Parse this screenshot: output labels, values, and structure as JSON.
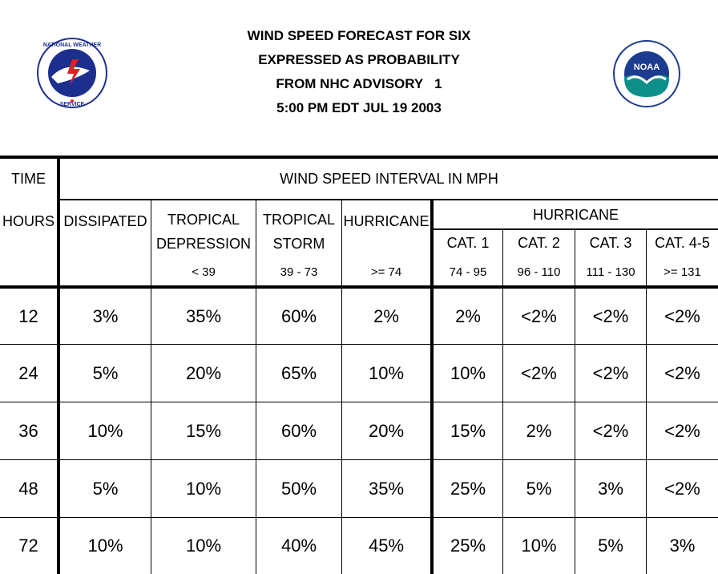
{
  "title": {
    "line1": "WIND SPEED FORECAST FOR SIX",
    "line2": "EXPRESSED AS PROBABILITY",
    "line3": "FROM NHC ADVISORY   1",
    "line4": "5:00 PM EDT JUL 19 2003"
  },
  "logos": {
    "nws": {
      "icon": "national-weather-service-seal-icon",
      "text": "NATIONAL WEATHER SERVICE"
    },
    "noaa": {
      "icon": "noaa-seal-icon",
      "text": "NOAA",
      "color": "#1c3d8f",
      "accent": "#0f8f8a"
    }
  },
  "table": {
    "time_label": "TIME",
    "interval_label": "WIND SPEED INTERVAL IN MPH",
    "hours_label": "HOURS",
    "columns": {
      "dissipated": {
        "label": "DISSIPATED",
        "range": ""
      },
      "td": {
        "label1": "TROPICAL",
        "label2": "DEPRESSION",
        "range": "< 39"
      },
      "ts": {
        "label1": "TROPICAL",
        "label2": "STORM",
        "range": "39 - 73"
      },
      "hu": {
        "label": "HURRICANE",
        "range": ">= 74"
      },
      "hurricane_group": "HURRICANE",
      "cat1": {
        "label": "CAT. 1",
        "range": "74 - 95"
      },
      "cat2": {
        "label": "CAT. 2",
        "range": "96 - 110"
      },
      "cat3": {
        "label": "CAT. 3",
        "range": "111 - 130"
      },
      "cat45": {
        "label": "CAT. 4-5",
        "range": ">= 131"
      }
    },
    "rows": [
      {
        "hours": "12",
        "values": [
          "3%",
          "35%",
          "60%",
          "2%",
          "2%",
          "<2%",
          "<2%",
          "<2%"
        ]
      },
      {
        "hours": "24",
        "values": [
          "5%",
          "20%",
          "65%",
          "10%",
          "10%",
          "<2%",
          "<2%",
          "<2%"
        ]
      },
      {
        "hours": "36",
        "values": [
          "10%",
          "15%",
          "60%",
          "20%",
          "15%",
          "2%",
          "<2%",
          "<2%"
        ]
      },
      {
        "hours": "48",
        "values": [
          "5%",
          "10%",
          "50%",
          "35%",
          "25%",
          "5%",
          "3%",
          "<2%"
        ]
      },
      {
        "hours": "72",
        "values": [
          "10%",
          "10%",
          "40%",
          "45%",
          "25%",
          "10%",
          "5%",
          "3%"
        ]
      }
    ]
  }
}
